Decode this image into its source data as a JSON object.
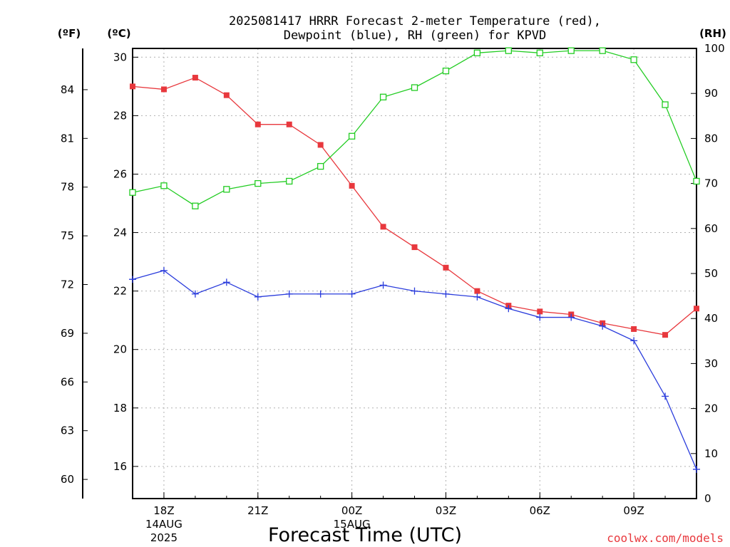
{
  "title_line1": "2025081417 HRRR Forecast 2-meter Temperature (red),",
  "title_line2": "Dewpoint (blue), RH (green) for KPVD",
  "credit": "coolwx.com/models",
  "chart_data": {
    "type": "line",
    "xlabel": "Forecast Time (UTC)",
    "x": [
      17,
      18,
      19,
      20,
      21,
      22,
      23,
      24,
      25,
      26,
      27,
      28,
      29,
      30,
      31,
      32,
      33,
      34,
      35
    ],
    "x_ticks": [
      {
        "hour": 18,
        "label": "18Z",
        "sub1": "14AUG",
        "sub2": "2025"
      },
      {
        "hour": 21,
        "label": "21Z",
        "sub1": "",
        "sub2": ""
      },
      {
        "hour": 24,
        "label": "00Z",
        "sub1": "15AUG",
        "sub2": ""
      },
      {
        "hour": 27,
        "label": "03Z",
        "sub1": "",
        "sub2": ""
      },
      {
        "hour": 30,
        "label": "06Z",
        "sub1": "",
        "sub2": ""
      },
      {
        "hour": 33,
        "label": "09Z",
        "sub1": "",
        "sub2": ""
      }
    ],
    "y_left_c": {
      "label": "(ºC)",
      "ticks": [
        16,
        18,
        20,
        22,
        24,
        26,
        28,
        30
      ],
      "range": [
        14.9,
        30.3
      ]
    },
    "y_left_f": {
      "label": "(ºF)",
      "ticks": [
        60,
        63,
        66,
        69,
        72,
        75,
        78,
        81,
        84
      ]
    },
    "y_right": {
      "label": "(RH)",
      "ticks": [
        0,
        10,
        20,
        30,
        40,
        50,
        60,
        70,
        80,
        90,
        100
      ],
      "range": [
        0,
        100
      ]
    },
    "series": [
      {
        "name": "Temperature",
        "axis": "c",
        "color": "#e8383d",
        "marker": "filled-square",
        "values": [
          29.0,
          28.9,
          29.3,
          28.7,
          27.7,
          27.7,
          27.0,
          25.6,
          24.2,
          23.5,
          22.8,
          22.0,
          21.5,
          21.3,
          21.2,
          20.9,
          20.7,
          20.5,
          21.4
        ]
      },
      {
        "name": "Dewpoint",
        "axis": "c",
        "color": "#2a3cdc",
        "marker": "plus",
        "values": [
          22.4,
          22.7,
          21.9,
          22.3,
          21.8,
          21.9,
          21.9,
          21.9,
          22.2,
          22.0,
          21.9,
          21.8,
          21.4,
          21.1,
          21.1,
          20.8,
          20.3,
          18.4,
          15.9
        ]
      },
      {
        "name": "RH",
        "axis": "rh",
        "color": "#22cc22",
        "marker": "open-square",
        "values": [
          68.0,
          69.5,
          65.0,
          68.7,
          70.0,
          70.5,
          73.8,
          80.5,
          89.2,
          91.3,
          95.0,
          99.0,
          99.5,
          99.0,
          99.5,
          99.5,
          97.5,
          87.5,
          70.5
        ]
      }
    ]
  }
}
